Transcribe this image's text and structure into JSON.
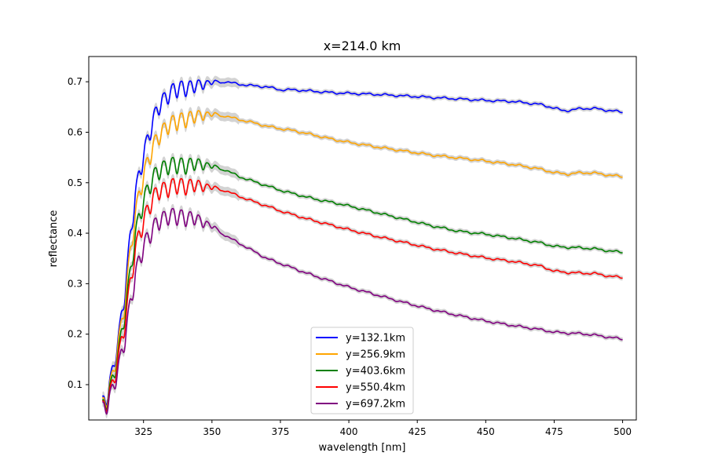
{
  "chart_data": {
    "type": "line",
    "title": "x=214.0 km",
    "xlabel": "wavelength [nm]",
    "ylabel": "reflectance",
    "xlim": [
      305,
      505
    ],
    "ylim": [
      0.03,
      0.75
    ],
    "xticks": [
      325,
      350,
      375,
      400,
      425,
      450,
      475,
      500
    ],
    "yticks": [
      0.1,
      0.2,
      0.3,
      0.4,
      0.5,
      0.6,
      0.7
    ],
    "grid": false,
    "legend_position": "lower center",
    "uncertainty_band_color": "#d3d3d3",
    "series": [
      {
        "name": "y=132.1km",
        "color": "#0000ff",
        "x": [
          310,
          312,
          314,
          316,
          318,
          320,
          322,
          325,
          328,
          331,
          334,
          337,
          340,
          343,
          346,
          350,
          355,
          360,
          365,
          370,
          375,
          380,
          385,
          390,
          395,
          400,
          410,
          420,
          430,
          440,
          450,
          460,
          470,
          475,
          478,
          480,
          485,
          490,
          495,
          500
        ],
        "y": [
          0.075,
          0.1,
          0.15,
          0.21,
          0.29,
          0.4,
          0.49,
          0.57,
          0.63,
          0.67,
          0.69,
          0.7,
          0.702,
          0.7,
          0.703,
          0.703,
          0.7,
          0.695,
          0.692,
          0.69,
          0.684,
          0.684,
          0.682,
          0.68,
          0.678,
          0.677,
          0.675,
          0.672,
          0.669,
          0.666,
          0.663,
          0.661,
          0.655,
          0.648,
          0.643,
          0.643,
          0.647,
          0.647,
          0.643,
          0.64
        ]
      },
      {
        "name": "y=256.9km",
        "color": "#ffa500",
        "x": [
          310,
          312,
          314,
          316,
          318,
          320,
          322,
          325,
          328,
          331,
          334,
          337,
          340,
          343,
          346,
          350,
          355,
          360,
          365,
          370,
          375,
          380,
          385,
          390,
          395,
          400,
          410,
          420,
          430,
          440,
          450,
          460,
          470,
          475,
          480,
          485,
          490,
          495,
          500
        ],
        "y": [
          0.072,
          0.095,
          0.14,
          0.2,
          0.27,
          0.37,
          0.45,
          0.53,
          0.58,
          0.61,
          0.63,
          0.635,
          0.64,
          0.64,
          0.642,
          0.64,
          0.632,
          0.625,
          0.619,
          0.612,
          0.607,
          0.603,
          0.597,
          0.591,
          0.585,
          0.58,
          0.571,
          0.563,
          0.555,
          0.549,
          0.543,
          0.536,
          0.527,
          0.52,
          0.517,
          0.52,
          0.519,
          0.515,
          0.512
        ]
      },
      {
        "name": "y=403.6km",
        "color": "#008000",
        "x": [
          310,
          312,
          314,
          316,
          318,
          320,
          322,
          325,
          328,
          331,
          334,
          337,
          340,
          343,
          346,
          350,
          355,
          360,
          365,
          370,
          375,
          380,
          385,
          390,
          395,
          400,
          410,
          420,
          430,
          440,
          450,
          460,
          470,
          475,
          480,
          485,
          490,
          495,
          500
        ],
        "y": [
          0.068,
          0.09,
          0.13,
          0.18,
          0.25,
          0.33,
          0.41,
          0.48,
          0.52,
          0.54,
          0.55,
          0.55,
          0.548,
          0.547,
          0.545,
          0.537,
          0.525,
          0.512,
          0.503,
          0.494,
          0.485,
          0.478,
          0.471,
          0.465,
          0.46,
          0.454,
          0.441,
          0.428,
          0.415,
          0.404,
          0.398,
          0.39,
          0.381,
          0.374,
          0.372,
          0.371,
          0.369,
          0.365,
          0.362
        ]
      },
      {
        "name": "y=550.4km",
        "color": "#ff0000",
        "x": [
          310,
          312,
          314,
          316,
          318,
          320,
          322,
          325,
          328,
          331,
          334,
          337,
          340,
          343,
          346,
          350,
          355,
          360,
          365,
          370,
          375,
          380,
          385,
          390,
          395,
          400,
          410,
          420,
          430,
          440,
          450,
          460,
          470,
          475,
          480,
          485,
          490,
          495,
          500
        ],
        "y": [
          0.066,
          0.085,
          0.12,
          0.17,
          0.23,
          0.31,
          0.38,
          0.44,
          0.48,
          0.5,
          0.505,
          0.51,
          0.507,
          0.505,
          0.502,
          0.495,
          0.484,
          0.473,
          0.463,
          0.454,
          0.444,
          0.436,
          0.428,
          0.421,
          0.414,
          0.407,
          0.394,
          0.382,
          0.37,
          0.36,
          0.351,
          0.344,
          0.335,
          0.325,
          0.322,
          0.321,
          0.32,
          0.315,
          0.312
        ]
      },
      {
        "name": "y=697.2km",
        "color": "#800080",
        "x": [
          310,
          312,
          314,
          316,
          318,
          320,
          322,
          325,
          328,
          331,
          334,
          337,
          340,
          343,
          346,
          350,
          355,
          360,
          365,
          370,
          375,
          380,
          385,
          390,
          395,
          400,
          410,
          420,
          430,
          440,
          450,
          460,
          470,
          475,
          480,
          485,
          490,
          495,
          500
        ],
        "y": [
          0.064,
          0.08,
          0.11,
          0.15,
          0.2,
          0.27,
          0.33,
          0.39,
          0.42,
          0.44,
          0.45,
          0.448,
          0.445,
          0.44,
          0.432,
          0.418,
          0.395,
          0.38,
          0.365,
          0.35,
          0.34,
          0.33,
          0.32,
          0.311,
          0.302,
          0.293,
          0.278,
          0.263,
          0.249,
          0.237,
          0.226,
          0.217,
          0.209,
          0.204,
          0.202,
          0.201,
          0.198,
          0.194,
          0.19
        ]
      }
    ]
  }
}
